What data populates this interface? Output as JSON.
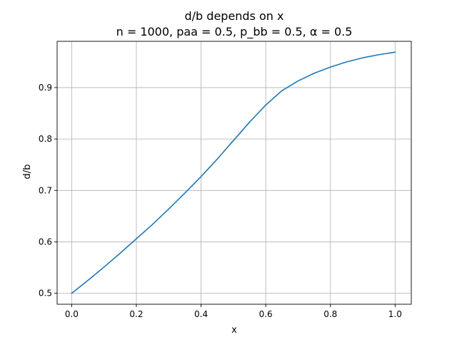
{
  "chart_data": {
    "type": "line",
    "title": "d/b depends on x",
    "subtitle": "n = 1000, paa = 0.5, p_bb = 0.5, α = 0.5",
    "xlabel": "x",
    "ylabel": "d/b",
    "xlim": [
      -0.045,
      1.05
    ],
    "ylim": [
      0.4787,
      0.99
    ],
    "xticks": [
      0.0,
      0.2,
      0.4,
      0.6,
      0.8,
      1.0
    ],
    "xtick_labels": [
      "0.0",
      "0.2",
      "0.4",
      "0.6",
      "0.8",
      "1.0"
    ],
    "yticks": [
      0.5,
      0.6,
      0.7,
      0.8,
      0.9
    ],
    "ytick_labels": [
      "0.5",
      "0.6",
      "0.7",
      "0.8",
      "0.9"
    ],
    "grid": true,
    "line_color": "#1f77b4",
    "series": [
      {
        "x": [
          0.0,
          0.05,
          0.1,
          0.15,
          0.2,
          0.25,
          0.3,
          0.35,
          0.4,
          0.45,
          0.5,
          0.55,
          0.6,
          0.65,
          0.7,
          0.75,
          0.8,
          0.85,
          0.9,
          0.95,
          1.0
        ],
        "values": [
          0.5,
          0.525,
          0.551,
          0.578,
          0.606,
          0.634,
          0.664,
          0.695,
          0.727,
          0.761,
          0.797,
          0.833,
          0.866,
          0.894,
          0.913,
          0.928,
          0.94,
          0.95,
          0.958,
          0.964,
          0.969
        ]
      }
    ]
  }
}
